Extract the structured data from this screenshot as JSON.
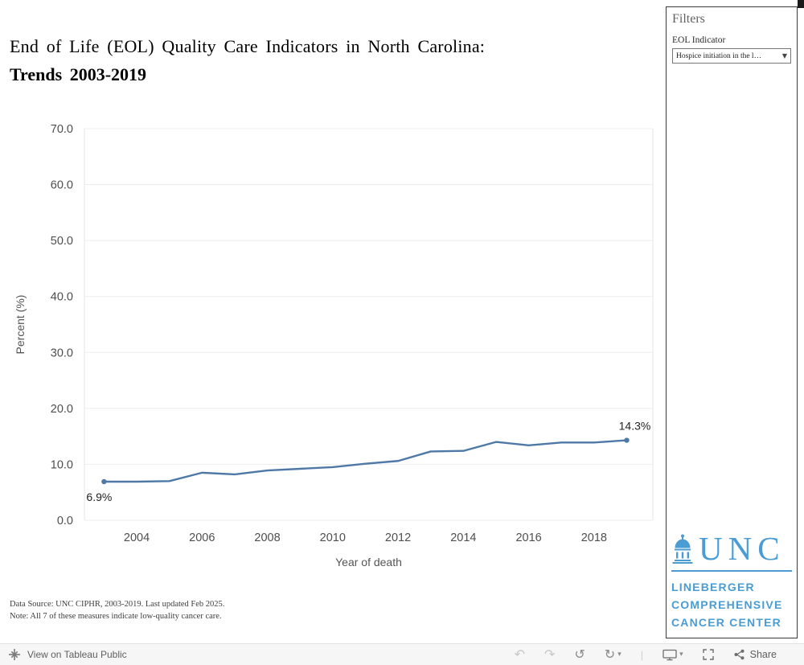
{
  "title": {
    "line1": "End of Life (EOL) Quality Care Indicators in North Carolina:",
    "line2": "Trends 2003-2019"
  },
  "filters": {
    "header": "Filters",
    "eol_indicator_label": "EOL Indicator",
    "eol_indicator_value": "Hospice initiation in the l…"
  },
  "chart_data": {
    "type": "line",
    "xlabel": "Year of death",
    "ylabel": "Percent (%)",
    "x": [
      2003,
      2004,
      2005,
      2006,
      2007,
      2008,
      2009,
      2010,
      2011,
      2012,
      2013,
      2014,
      2015,
      2016,
      2017,
      2018,
      2019
    ],
    "values": [
      6.9,
      6.9,
      7.0,
      8.5,
      8.2,
      8.9,
      9.2,
      9.5,
      10.1,
      10.6,
      12.3,
      12.4,
      14.0,
      13.4,
      13.9,
      13.9,
      14.3
    ],
    "series_color": "#4e79a7",
    "ylim": [
      0,
      70
    ],
    "xlim": [
      2002.4,
      2019.8
    ],
    "yticks": [
      0,
      10,
      20,
      30,
      40,
      50,
      60,
      70
    ],
    "ytick_labels": [
      "0.0",
      "10.0",
      "20.0",
      "30.0",
      "40.0",
      "50.0",
      "60.0",
      "70.0"
    ],
    "xticks": [
      2004,
      2006,
      2008,
      2010,
      2012,
      2014,
      2016,
      2018
    ],
    "first_point_label": "6.9%",
    "last_point_label": "14.3%",
    "grid": "horizontal",
    "legend": "none"
  },
  "footnotes": {
    "line1": "Data Source: UNC CIPHR, 2003-2019. Last updated Feb 2025.",
    "line2": "Note: All 7 of these measures indicate low-quality cancer care."
  },
  "branding": {
    "unc": "UNC",
    "line1": "LINEBERGER",
    "line2": "COMPREHENSIVE",
    "line3": "CANCER CENTER",
    "blue": "#4B9CD3"
  },
  "toolbar": {
    "view_label": "View on Tableau Public",
    "share_label": "Share"
  },
  "icons": {
    "dropdown_caret": "▼",
    "undo": "↶",
    "redo": "↷",
    "revert": "↺",
    "refresh": "↻",
    "caret_down": "▾",
    "separator": "|"
  }
}
